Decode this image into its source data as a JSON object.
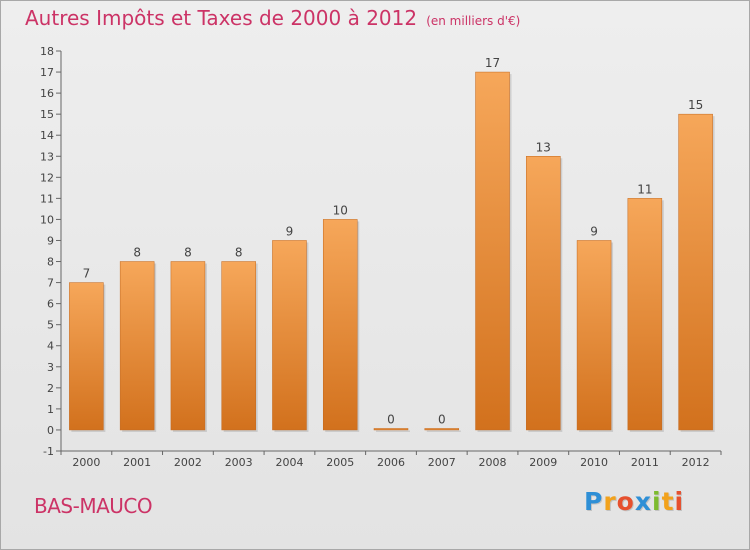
{
  "title": "Autres Impôts et Taxes de 2000 à 2012",
  "subtitle": "(en milliers d'€)",
  "place_name": "BAS-MAUCO",
  "brand": {
    "letters": [
      "P",
      "r",
      "o",
      "x",
      "i",
      "t",
      "i"
    ],
    "colors": [
      "#2e8fd6",
      "#f2a21c",
      "#e6502e",
      "#2e8fd6",
      "#7dbb2f",
      "#f2a21c",
      "#e6502e"
    ]
  },
  "chart_data": {
    "type": "bar",
    "categories": [
      "2000",
      "2001",
      "2002",
      "2003",
      "2004",
      "2005",
      "2006",
      "2007",
      "2008",
      "2009",
      "2010",
      "2011",
      "2012"
    ],
    "values": [
      7,
      8,
      8,
      8,
      9,
      10,
      0,
      0,
      17,
      13,
      9,
      11,
      15
    ],
    "ylim": [
      -1,
      18
    ],
    "yticks": [
      -1,
      0,
      1,
      2,
      3,
      4,
      5,
      6,
      7,
      8,
      9,
      10,
      11,
      12,
      13,
      14,
      15,
      16,
      17,
      18
    ],
    "grid": false,
    "bar_color_top": "#f6a75a",
    "bar_color_bottom": "#d2711d",
    "label_color": "#444444",
    "axis_color": "#666666"
  }
}
